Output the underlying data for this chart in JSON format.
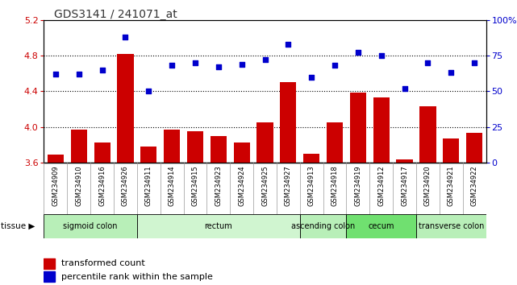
{
  "title": "GDS3141 / 241071_at",
  "samples": [
    "GSM234909",
    "GSM234910",
    "GSM234916",
    "GSM234926",
    "GSM234911",
    "GSM234914",
    "GSM234915",
    "GSM234923",
    "GSM234924",
    "GSM234925",
    "GSM234927",
    "GSM234913",
    "GSM234918",
    "GSM234919",
    "GSM234912",
    "GSM234917",
    "GSM234920",
    "GSM234921",
    "GSM234922"
  ],
  "bar_values": [
    3.69,
    3.97,
    3.82,
    4.82,
    3.78,
    3.97,
    3.95,
    3.9,
    3.82,
    4.05,
    4.5,
    3.7,
    4.05,
    4.38,
    4.33,
    3.63,
    4.23,
    3.87,
    3.93
  ],
  "dot_values": [
    62,
    62,
    65,
    88,
    50,
    68,
    70,
    67,
    69,
    72,
    83,
    60,
    68,
    77,
    75,
    52,
    70,
    63,
    70
  ],
  "ylim_left": [
    3.6,
    5.2
  ],
  "ylim_right": [
    0,
    100
  ],
  "yticks_left": [
    3.6,
    4.0,
    4.4,
    4.8,
    5.2
  ],
  "yticks_right": [
    0,
    25,
    50,
    75,
    100
  ],
  "hlines": [
    4.0,
    4.4,
    4.8
  ],
  "tissue_groups": [
    {
      "label": "sigmoid colon",
      "start": 0,
      "end": 4,
      "color": "#b8efb8"
    },
    {
      "label": "rectum",
      "start": 4,
      "end": 11,
      "color": "#d0f5d0"
    },
    {
      "label": "ascending colon",
      "start": 11,
      "end": 13,
      "color": "#b8efb8"
    },
    {
      "label": "cecum",
      "start": 13,
      "end": 16,
      "color": "#70e070"
    },
    {
      "label": "transverse colon",
      "start": 16,
      "end": 19,
      "color": "#b8efb8"
    }
  ],
  "bar_color": "#cc0000",
  "dot_color": "#0000cc",
  "plot_bg_color": "#ffffff",
  "left_axis_color": "#cc0000",
  "right_axis_color": "#0000cc",
  "sample_bg_color": "#cccccc"
}
